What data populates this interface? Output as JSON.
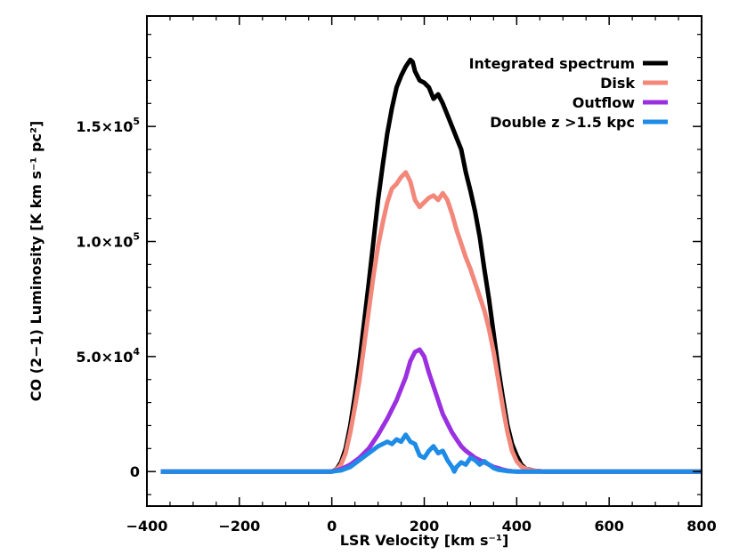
{
  "chart_data": {
    "type": "line",
    "title": "",
    "xlabel": "LSR Velocity [km s⁻¹]",
    "ylabel": "CO (2−1) Luminosity [K km s⁻¹ pc²]",
    "xlim": [
      -400,
      800
    ],
    "ylim": [
      -15000,
      198000
    ],
    "x_ticks": [
      -400,
      -200,
      0,
      200,
      400,
      600,
      800
    ],
    "x_tick_labels": [
      "−400",
      "−200",
      "0",
      "200",
      "400",
      "600",
      "800"
    ],
    "y_ticks": [
      0,
      50000,
      100000,
      150000
    ],
    "y_tick_labels": [
      {
        "mantissa": "0",
        "exponent": ""
      },
      {
        "mantissa": "5.0×10",
        "exponent": "4"
      },
      {
        "mantissa": "1.0×10",
        "exponent": "5"
      },
      {
        "mantissa": "1.5×10",
        "exponent": "5"
      }
    ],
    "legend_position": "top-right",
    "series": [
      {
        "name": "Integrated spectrum",
        "color": "#000000",
        "x": [
          -370,
          0,
          10,
          20,
          30,
          40,
          50,
          60,
          70,
          80,
          90,
          100,
          110,
          120,
          130,
          140,
          150,
          160,
          170,
          175,
          180,
          190,
          200,
          210,
          220,
          230,
          240,
          250,
          260,
          270,
          280,
          290,
          300,
          310,
          320,
          330,
          340,
          350,
          360,
          370,
          380,
          390,
          400,
          410,
          420,
          440,
          460,
          800
        ],
        "y": [
          0,
          0,
          1000,
          4000,
          10000,
          20000,
          33000,
          48000,
          65000,
          82000,
          100000,
          118000,
          133000,
          147000,
          158000,
          167000,
          172000,
          176000,
          179000,
          178000,
          174000,
          170000,
          169000,
          167000,
          162000,
          164000,
          160000,
          155000,
          150000,
          145000,
          140000,
          130000,
          122000,
          113000,
          102000,
          88000,
          75000,
          60000,
          45000,
          32000,
          20000,
          12000,
          7000,
          3000,
          1200,
          300,
          0,
          0
        ]
      },
      {
        "name": "Disk",
        "color": "#f2877a",
        "x": [
          -370,
          0,
          10,
          20,
          30,
          40,
          50,
          60,
          70,
          80,
          90,
          100,
          110,
          120,
          130,
          140,
          150,
          160,
          170,
          180,
          190,
          200,
          210,
          220,
          230,
          240,
          250,
          260,
          270,
          280,
          290,
          300,
          310,
          320,
          330,
          340,
          350,
          360,
          370,
          380,
          390,
          400,
          410,
          420,
          430,
          440,
          460,
          800
        ],
        "y": [
          0,
          0,
          800,
          3000,
          8000,
          17000,
          28000,
          40000,
          55000,
          70000,
          85000,
          98000,
          108000,
          117000,
          123000,
          125000,
          128000,
          130000,
          126000,
          118000,
          115000,
          117000,
          119000,
          120000,
          118000,
          121000,
          118000,
          112000,
          105000,
          99000,
          93000,
          88000,
          82000,
          76000,
          70000,
          62000,
          52000,
          40000,
          28000,
          17000,
          9000,
          4500,
          2200,
          1200,
          600,
          300,
          0,
          0
        ]
      },
      {
        "name": "Outflow",
        "color": "#9b30e0",
        "x": [
          -370,
          0,
          20,
          40,
          60,
          80,
          100,
          120,
          140,
          160,
          170,
          180,
          190,
          200,
          210,
          220,
          230,
          240,
          250,
          260,
          270,
          280,
          290,
          300,
          310,
          320,
          330,
          340,
          350,
          360,
          370,
          380,
          390,
          400,
          800
        ],
        "y": [
          0,
          0,
          1000,
          3000,
          6000,
          10000,
          16000,
          23000,
          31000,
          41000,
          48000,
          52000,
          53000,
          50000,
          43000,
          37000,
          31000,
          25000,
          21000,
          17000,
          14000,
          11000,
          9000,
          7500,
          6000,
          5000,
          4000,
          3000,
          2000,
          1500,
          800,
          400,
          100,
          0,
          0
        ]
      },
      {
        "name": "Double z >1.5 kpc",
        "color": "#1e8ce6",
        "x": [
          -370,
          0,
          20,
          40,
          60,
          80,
          100,
          110,
          120,
          130,
          140,
          150,
          160,
          170,
          180,
          190,
          200,
          210,
          220,
          230,
          240,
          250,
          260,
          265,
          270,
          280,
          290,
          300,
          310,
          320,
          330,
          340,
          350,
          360,
          380,
          400,
          800
        ],
        "y": [
          0,
          0,
          500,
          2000,
          5000,
          8000,
          11000,
          12000,
          13000,
          12000,
          14000,
          13000,
          16000,
          13000,
          12000,
          7000,
          6000,
          9000,
          11000,
          8000,
          9000,
          5000,
          2000,
          0,
          2000,
          4000,
          3000,
          6000,
          5000,
          3000,
          4500,
          3000,
          1500,
          800,
          200,
          0,
          0
        ]
      }
    ]
  }
}
